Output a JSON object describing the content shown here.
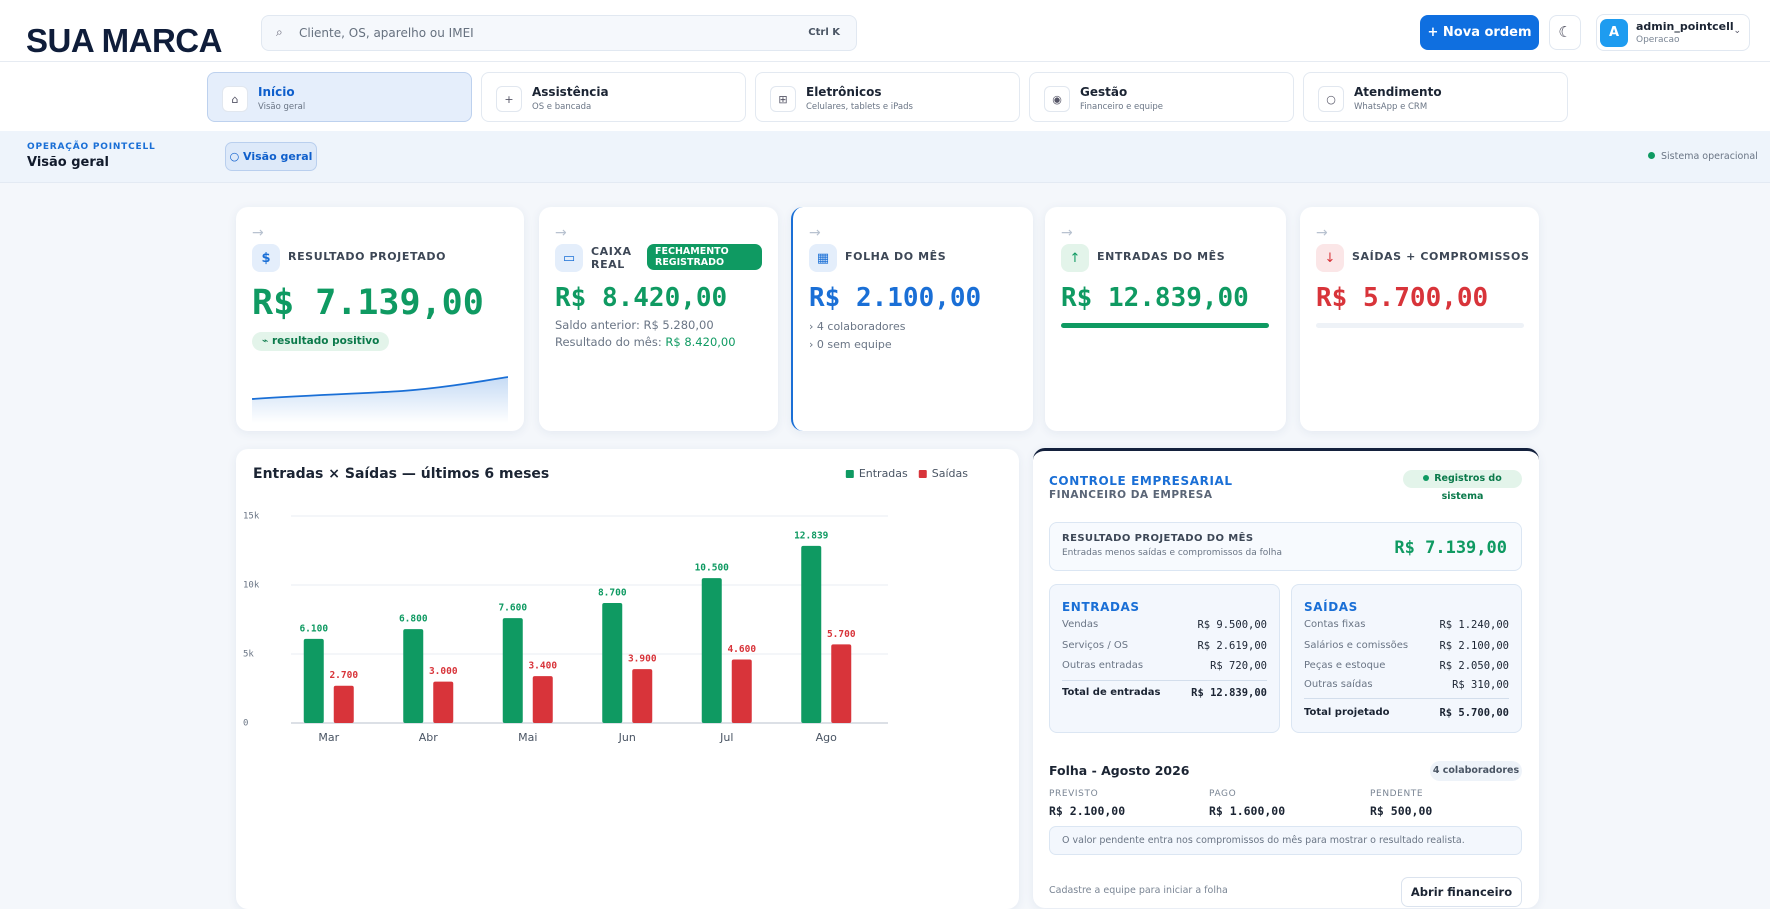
{
  "header": {
    "brand": "SUA MARCA",
    "search_placeholder": "Cliente, OS, aparelho ou IMEI",
    "search_shortcut": "Ctrl K",
    "new_order": "+ Nova ordem",
    "avatar": "A",
    "user_name": "admin_pointcell",
    "user_role": "Operacao"
  },
  "nav": [
    {
      "title": "Início",
      "subtitle": "Visão geral"
    },
    {
      "title": "Assistência",
      "subtitle": "OS e bancada"
    },
    {
      "title": "Eletrônicos",
      "subtitle": "Celulares, tablets e iPads"
    },
    {
      "title": "Gestão",
      "subtitle": "Financeiro e equipe"
    },
    {
      "title": "Atendimento",
      "subtitle": "WhatsApp e CRM"
    }
  ],
  "context": {
    "eyebrow": "OPERAÇÃO POINTCELL",
    "title": "Visão geral",
    "chip": "Visão geral",
    "status": "Sistema operacional"
  },
  "cards": [
    {
      "label": "RESULTADO PROJETADO",
      "value": "R$ 7.139,00",
      "badge": "resultado positivo"
    },
    {
      "label": "CAIXA REAL",
      "badge": "FECHAMENTO REGISTRADO",
      "value": "R$ 8.420,00",
      "previous_balance": "Saldo anterior: R$ 5.280,00",
      "month_result_label": "Resultado do mês:",
      "month_result": "R$ 8.420,00"
    },
    {
      "label": "FOLHA DO MÊS",
      "value": "R$ 2.100,00",
      "notes": [
        "4 colaboradores",
        "0 sem equipe"
      ]
    },
    {
      "label": "ENTRADAS DO MÊS",
      "value": "R$ 12.839,00"
    },
    {
      "label": "SAÍDAS + COMPROMISSOS",
      "value": "R$ 5.700,00"
    }
  ],
  "chart_data": {
    "type": "bar",
    "title": "Entradas × Saídas — últimos 6 meses",
    "categories": [
      "Mar",
      "Abr",
      "Mai",
      "Jun",
      "Jul",
      "Ago"
    ],
    "series": [
      {
        "name": "Entradas",
        "color": "#0f9a62",
        "values": [
          6100,
          6800,
          7600,
          8700,
          10500,
          12839
        ],
        "value_labels": [
          "6.100",
          "6.800",
          "7.600",
          "8.700",
          "10.500",
          "12.839"
        ]
      },
      {
        "name": "Saídas",
        "color": "#d8343a",
        "values": [
          2700,
          3000,
          3400,
          3900,
          4600,
          5700
        ],
        "value_labels": [
          "2.700",
          "3.000",
          "3.400",
          "3.900",
          "4.600",
          "5.700"
        ]
      }
    ],
    "ylim": [
      0,
      15000
    ],
    "yticks": [
      0,
      {
        "value": 5000,
        "label": "5k"
      },
      {
        "value": 10000,
        "label": "10k"
      },
      {
        "value": 15000,
        "label": "15k"
      }
    ],
    "grid": true,
    "legend": "top-right"
  },
  "finance": {
    "eyebrow": "CONTROLE EMPRESARIAL",
    "subtitle": "FINANCEIRO DA EMPRESA",
    "badge": "Registros do sistema",
    "projected": {
      "label": "RESULTADO PROJETADO DO MÊS",
      "hint": "Entradas menos saídas e compromissos da folha",
      "value": "R$ 7.139,00"
    },
    "income": {
      "title": "ENTRADAS",
      "rows": [
        [
          "Vendas",
          "R$ 9.500,00"
        ],
        [
          "Serviços / OS",
          "R$ 2.619,00"
        ],
        [
          "Outras entradas",
          "R$ 720,00"
        ]
      ],
      "total": [
        "Total de entradas",
        "R$ 12.839,00"
      ]
    },
    "expenses": {
      "title": "SAÍDAS",
      "rows": [
        [
          "Contas fixas",
          "R$ 1.240,00"
        ],
        [
          "Salários e comissões",
          "R$ 2.100,00"
        ],
        [
          "Peças e estoque",
          "R$ 2.050,00"
        ],
        [
          "Outras saídas",
          "R$ 310,00"
        ]
      ],
      "total": [
        "Total projetado",
        "R$ 5.700,00"
      ]
    },
    "payroll": {
      "title": "Folha - Agosto 2026",
      "badge": "4 colaboradores",
      "items": [
        [
          "PREVISTO",
          "R$ 2.100,00"
        ],
        [
          "PAGO",
          "R$ 1.600,00"
        ],
        [
          "PENDENTE",
          "R$ 500,00"
        ]
      ],
      "note": "O valor pendente entra nos compromissos do mês para mostrar o resultado realista."
    },
    "footer": "Cadastre a equipe para iniciar a folha",
    "open_button": "Abrir financeiro"
  }
}
